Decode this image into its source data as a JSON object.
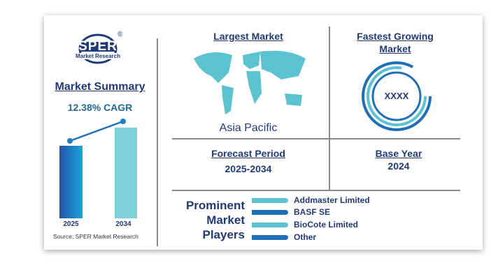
{
  "logo": {
    "name": "SPER",
    "sub": "Market Research",
    "registered": "®"
  },
  "summary": {
    "title": "Market Summary",
    "cagr": "12.38% CAGR",
    "years": [
      "2025",
      "2034"
    ],
    "source": "Source: SPER Market Research"
  },
  "largest": {
    "title": "Largest Market",
    "value": "Asia Pacific"
  },
  "fastest": {
    "title_line1": "Fastest Growing",
    "title_line2": "Market",
    "value": "XXXX"
  },
  "forecast": {
    "title": "Forecast Period",
    "value": "2025-2034"
  },
  "base": {
    "title": "Base Year",
    "value": "2024"
  },
  "players": {
    "title_lines": [
      "Prominent",
      "Market",
      "Players"
    ],
    "items": [
      "Addmaster Limited",
      "BASF SE",
      "BioCote Limited",
      "Other"
    ]
  },
  "colors": {
    "navy": "#1f3a7a",
    "teal": "#5bc3cf",
    "blue": "#1e6fb8"
  }
}
